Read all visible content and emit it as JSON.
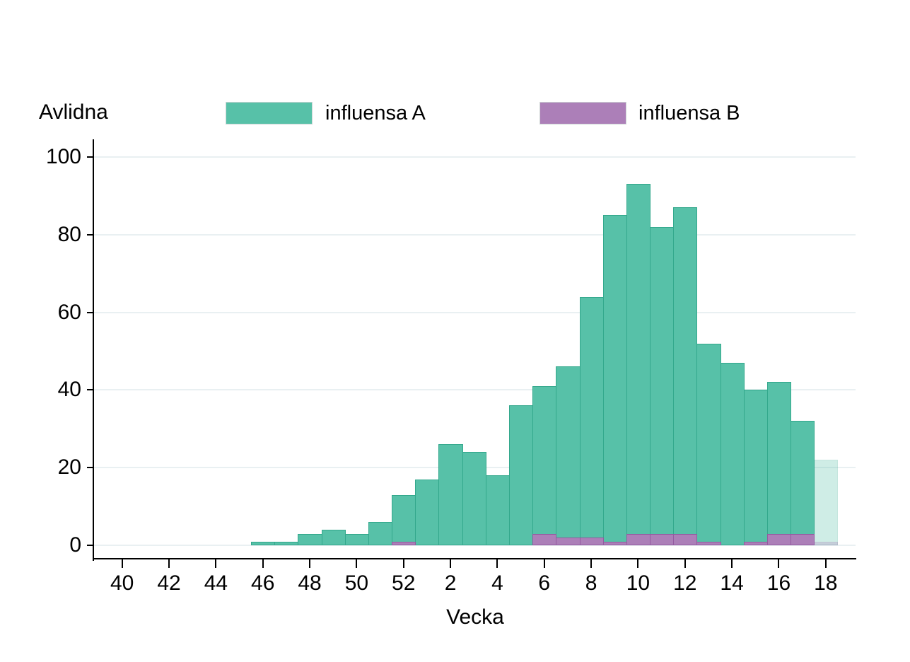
{
  "title": "Avlidna",
  "xlabel": "Vecka",
  "legend": [
    {
      "label": "influensa A",
      "color": "#57c1a8",
      "border_color": "#33a88c"
    },
    {
      "label": "influensa B",
      "color": "#ac7fb8",
      "border_color": "#945aa0"
    }
  ],
  "chart_data": {
    "type": "bar",
    "title": "Avlidna",
    "xlabel": "Vecka",
    "ylim": [
      0,
      100
    ],
    "yticks": [
      0,
      20,
      40,
      60,
      80,
      100
    ],
    "categories": [
      "40",
      "41",
      "42",
      "43",
      "44",
      "45",
      "46",
      "47",
      "48",
      "49",
      "50",
      "51",
      "52",
      "1",
      "2",
      "3",
      "4",
      "5",
      "6",
      "7",
      "8",
      "9",
      "10",
      "11",
      "12",
      "13",
      "14",
      "15",
      "16",
      "17",
      "18"
    ],
    "xtick_labels": [
      "40",
      "42",
      "44",
      "46",
      "48",
      "50",
      "52",
      "2",
      "4",
      "6",
      "8",
      "10",
      "12",
      "14",
      "16",
      "18"
    ],
    "series": [
      {
        "name": "influensa A",
        "color": "#57c1a8",
        "border_color": "#33a88c",
        "values": [
          0,
          0,
          0,
          0,
          0,
          0,
          1,
          1,
          3,
          4,
          3,
          6,
          13,
          17,
          26,
          24,
          18,
          36,
          41,
          46,
          64,
          85,
          93,
          82,
          87,
          52,
          47,
          40,
          42,
          32,
          22
        ]
      },
      {
        "name": "influensa B",
        "color": "#ac7fb8",
        "border_color": "#945aa0",
        "values": [
          0,
          0,
          0,
          0,
          0,
          0,
          0,
          0,
          0,
          0,
          0,
          0,
          1,
          0,
          0,
          0,
          0,
          0,
          3,
          2,
          2,
          1,
          3,
          3,
          3,
          1,
          0,
          1,
          3,
          3,
          1
        ]
      }
    ],
    "faded_categories": [
      "18"
    ],
    "legend_position": "top",
    "grid": "horizontal",
    "gridline_color": "#e9f0f2"
  }
}
